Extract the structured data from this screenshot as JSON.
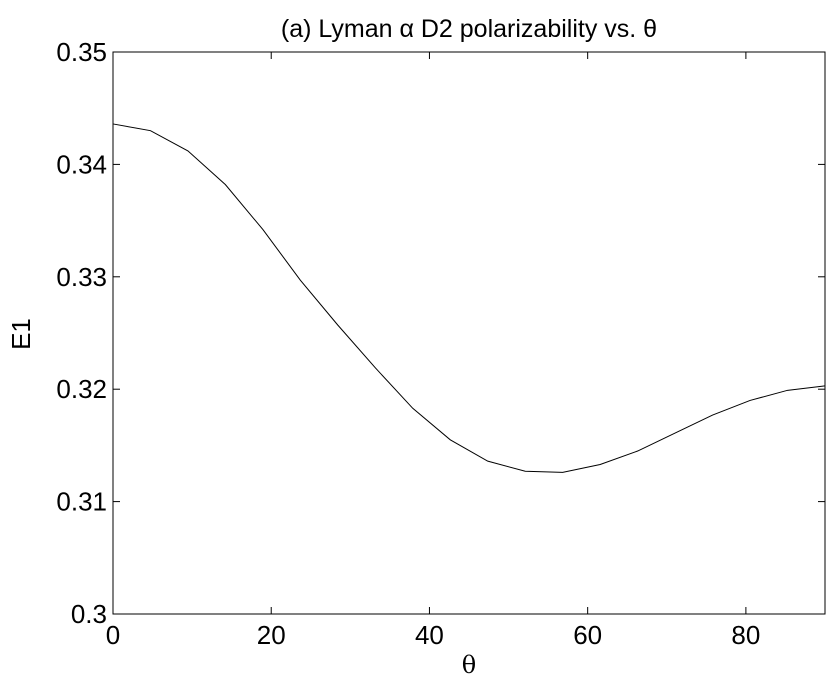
{
  "chart_data": {
    "type": "line",
    "title": "(a) Lyman α D2 polarizability vs. θ",
    "xlabel": "θ",
    "ylabel": "E1",
    "xlim": [
      0,
      90
    ],
    "ylim": [
      0.3,
      0.35
    ],
    "xticks": [
      0,
      20,
      40,
      60,
      80
    ],
    "xtick_labels": [
      "0",
      "20",
      "40",
      "60",
      "80"
    ],
    "yticks": [
      0.3,
      0.31,
      0.32,
      0.33,
      0.34,
      0.35
    ],
    "ytick_labels": [
      "0.3",
      "0.31",
      "0.32",
      "0.33",
      "0.34",
      "0.35"
    ],
    "grid": false,
    "series": [
      {
        "x": [
          0,
          4.74,
          9.47,
          14.21,
          18.95,
          23.68,
          28.42,
          33.16,
          37.89,
          42.63,
          47.37,
          52.11,
          56.84,
          61.58,
          66.32,
          71.05,
          75.79,
          80.53,
          85.26,
          90
        ],
        "y": [
          0.3436,
          0.343,
          0.3412,
          0.3382,
          0.3342,
          0.3297,
          0.3257,
          0.3219,
          0.3183,
          0.3155,
          0.3136,
          0.3127,
          0.3126,
          0.3133,
          0.3145,
          0.3161,
          0.3177,
          0.319,
          0.3199,
          0.3203
        ]
      }
    ]
  }
}
